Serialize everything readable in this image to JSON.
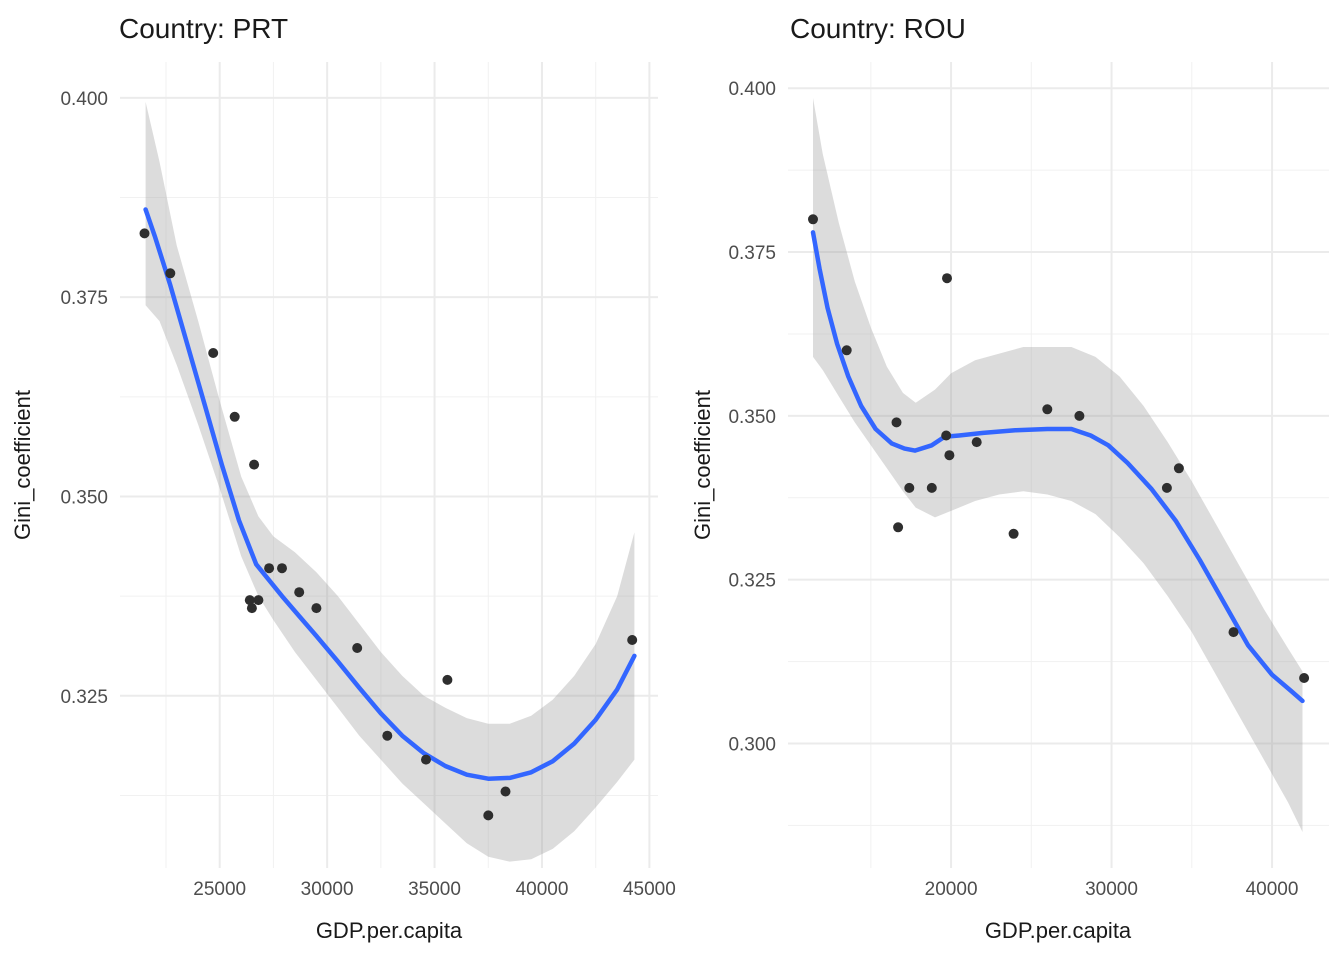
{
  "figure": {
    "background": "#FFFFFF"
  },
  "style": {
    "smooth_line_color": "#3366FF",
    "smooth_line_width": 4.5,
    "ribbon_color": "#9B9B9B",
    "ribbon_opacity": 0.35,
    "point_color": "#2E2E2E",
    "point_radius": 5,
    "grid_major_color": "#EBEBEB",
    "grid_minor_color": "#F1F1F1",
    "tick_label_color": "#4D4D4D",
    "title_color": "#1A1A1A",
    "background": "#FFFFFF"
  },
  "chart_data": [
    {
      "id": "prt",
      "type": "scatter",
      "title": "Country: PRT",
      "xlabel": "GDP.per.capita",
      "ylabel": "Gini_coefficient",
      "legend": false,
      "grid": true,
      "xlim": [
        20360,
        45400
      ],
      "ylim": [
        0.3034,
        0.4045
      ],
      "x_ticks": [
        25000,
        30000,
        35000,
        40000,
        45000
      ],
      "x_tick_labels": [
        "25000",
        "30000",
        "35000",
        "40000",
        "45000"
      ],
      "x_minor_ticks": [
        22500,
        27500,
        32500,
        37500,
        42500
      ],
      "y_ticks": [
        0.4,
        0.375,
        0.35,
        0.325
      ],
      "y_tick_labels": [
        "0.400",
        "0.375",
        "0.350",
        "0.325"
      ],
      "y_minor_ticks": [
        0.3875,
        0.3625,
        0.3375,
        0.3125
      ],
      "points": [
        [
          21500,
          0.383
        ],
        [
          22700,
          0.378
        ],
        [
          24700,
          0.368
        ],
        [
          25700,
          0.36
        ],
        [
          26600,
          0.354
        ],
        [
          26400,
          0.337
        ],
        [
          26800,
          0.337
        ],
        [
          26500,
          0.336
        ],
        [
          27300,
          0.341
        ],
        [
          27900,
          0.341
        ],
        [
          28700,
          0.338
        ],
        [
          29500,
          0.336
        ],
        [
          31400,
          0.331
        ],
        [
          32800,
          0.32
        ],
        [
          34600,
          0.317
        ],
        [
          35600,
          0.327
        ],
        [
          37500,
          0.31
        ],
        [
          38300,
          0.313
        ],
        [
          44200,
          0.332
        ]
      ],
      "smooth_line": [
        [
          21550,
          0.386
        ],
        [
          22000,
          0.3825
        ],
        [
          22700,
          0.3765
        ],
        [
          23500,
          0.369
        ],
        [
          24300,
          0.3615
        ],
        [
          25100,
          0.354
        ],
        [
          25900,
          0.347
        ],
        [
          26700,
          0.3415
        ],
        [
          27300,
          0.3395
        ],
        [
          27900,
          0.3375
        ],
        [
          28700,
          0.335
        ],
        [
          29500,
          0.3325
        ],
        [
          30500,
          0.3293
        ],
        [
          31500,
          0.326
        ],
        [
          32500,
          0.3228
        ],
        [
          33500,
          0.32
        ],
        [
          34500,
          0.3178
        ],
        [
          35500,
          0.3162
        ],
        [
          36500,
          0.3151
        ],
        [
          37500,
          0.3146
        ],
        [
          38500,
          0.3147
        ],
        [
          39500,
          0.3154
        ],
        [
          40500,
          0.3168
        ],
        [
          41500,
          0.319
        ],
        [
          42500,
          0.322
        ],
        [
          43500,
          0.3258
        ],
        [
          44300,
          0.33
        ]
      ],
      "ribbon": [
        [
          21550,
          0.374,
          0.3995
        ],
        [
          22200,
          0.372,
          0.392
        ],
        [
          23000,
          0.3665,
          0.3815
        ],
        [
          24000,
          0.359,
          0.372
        ],
        [
          25000,
          0.351,
          0.362
        ],
        [
          26000,
          0.3425,
          0.3525
        ],
        [
          26800,
          0.3375,
          0.3475
        ],
        [
          27500,
          0.3345,
          0.345
        ],
        [
          28500,
          0.3305,
          0.343
        ],
        [
          29500,
          0.327,
          0.3405
        ],
        [
          30500,
          0.3235,
          0.3375
        ],
        [
          31500,
          0.32,
          0.334
        ],
        [
          32500,
          0.317,
          0.3305
        ],
        [
          33500,
          0.314,
          0.3275
        ],
        [
          34500,
          0.3115,
          0.325
        ],
        [
          35500,
          0.309,
          0.3235
        ],
        [
          36500,
          0.3065,
          0.3222
        ],
        [
          37500,
          0.3048,
          0.3215
        ],
        [
          38500,
          0.3042,
          0.3215
        ],
        [
          39500,
          0.3045,
          0.3225
        ],
        [
          40500,
          0.3058,
          0.3245
        ],
        [
          41500,
          0.308,
          0.3275
        ],
        [
          42500,
          0.311,
          0.3315
        ],
        [
          43500,
          0.3142,
          0.3375
        ],
        [
          44300,
          0.317,
          0.3455
        ]
      ]
    },
    {
      "id": "rou",
      "type": "scatter",
      "title": "Country: ROU",
      "xlabel": "GDP.per.capita",
      "ylabel": "Gini_coefficient",
      "legend": false,
      "grid": true,
      "xlim": [
        9840,
        43550
      ],
      "ylim": [
        0.281,
        0.404
      ],
      "x_ticks": [
        20000,
        30000,
        40000
      ],
      "x_tick_labels": [
        "20000",
        "30000",
        "40000"
      ],
      "x_minor_ticks": [
        15000,
        25000,
        35000
      ],
      "y_ticks": [
        0.4,
        0.375,
        0.35,
        0.325,
        0.3
      ],
      "y_tick_labels": [
        "0.400",
        "0.375",
        "0.350",
        "0.325",
        "0.300"
      ],
      "y_minor_ticks": [
        0.3875,
        0.3625,
        0.3375,
        0.3125,
        0.2875
      ],
      "points": [
        [
          11400,
          0.38
        ],
        [
          13500,
          0.36
        ],
        [
          16600,
          0.349
        ],
        [
          16700,
          0.333
        ],
        [
          17400,
          0.339
        ],
        [
          18800,
          0.339
        ],
        [
          19700,
          0.347
        ],
        [
          19750,
          0.371
        ],
        [
          19900,
          0.344
        ],
        [
          21600,
          0.346
        ],
        [
          23900,
          0.332
        ],
        [
          26000,
          0.351
        ],
        [
          28000,
          0.35
        ],
        [
          33450,
          0.339
        ],
        [
          34200,
          0.342
        ],
        [
          37600,
          0.317
        ],
        [
          42000,
          0.31
        ]
      ],
      "smooth_line": [
        [
          11400,
          0.378
        ],
        [
          11800,
          0.3725
        ],
        [
          12300,
          0.3665
        ],
        [
          12900,
          0.361
        ],
        [
          13600,
          0.356
        ],
        [
          14400,
          0.3515
        ],
        [
          15300,
          0.348
        ],
        [
          16300,
          0.3458
        ],
        [
          17100,
          0.345
        ],
        [
          17750,
          0.3447
        ],
        [
          18800,
          0.3455
        ],
        [
          19600,
          0.3468
        ],
        [
          20500,
          0.347
        ],
        [
          22000,
          0.3474
        ],
        [
          24000,
          0.3478
        ],
        [
          26000,
          0.348
        ],
        [
          27500,
          0.348
        ],
        [
          28700,
          0.347
        ],
        [
          29800,
          0.3455
        ],
        [
          31000,
          0.3428
        ],
        [
          32500,
          0.3388
        ],
        [
          34000,
          0.334
        ],
        [
          35500,
          0.328
        ],
        [
          37000,
          0.3215
        ],
        [
          38500,
          0.315
        ],
        [
          40000,
          0.3105
        ],
        [
          41200,
          0.308
        ],
        [
          41900,
          0.3065
        ]
      ],
      "ribbon": [
        [
          11400,
          0.359,
          0.3985
        ],
        [
          12000,
          0.357,
          0.39
        ],
        [
          13000,
          0.353,
          0.3795
        ],
        [
          14000,
          0.349,
          0.3705
        ],
        [
          15000,
          0.3455,
          0.3635
        ],
        [
          16000,
          0.342,
          0.3575
        ],
        [
          17000,
          0.3385,
          0.3535
        ],
        [
          17800,
          0.336,
          0.352
        ],
        [
          19000,
          0.3345,
          0.354
        ],
        [
          20000,
          0.3355,
          0.3565
        ],
        [
          21500,
          0.337,
          0.3585
        ],
        [
          23000,
          0.338,
          0.3595
        ],
        [
          24500,
          0.3385,
          0.3605
        ],
        [
          26000,
          0.338,
          0.3605
        ],
        [
          27500,
          0.337,
          0.3605
        ],
        [
          29000,
          0.335,
          0.359
        ],
        [
          30500,
          0.3315,
          0.356
        ],
        [
          32000,
          0.3275,
          0.3515
        ],
        [
          33500,
          0.3225,
          0.346
        ],
        [
          35000,
          0.317,
          0.34
        ],
        [
          36500,
          0.3105,
          0.3335
        ],
        [
          38000,
          0.304,
          0.327
        ],
        [
          39500,
          0.2975,
          0.3205
        ],
        [
          41000,
          0.291,
          0.3145
        ],
        [
          41900,
          0.2865,
          0.311
        ]
      ]
    }
  ]
}
